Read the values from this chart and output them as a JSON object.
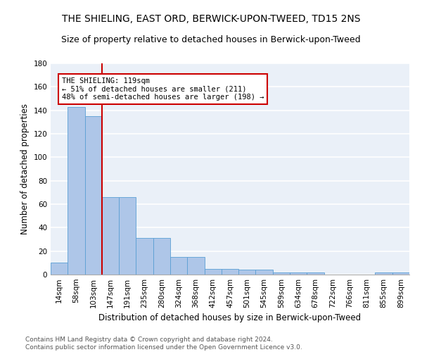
{
  "title": "THE SHIELING, EAST ORD, BERWICK-UPON-TWEED, TD15 2NS",
  "subtitle": "Size of property relative to detached houses in Berwick-upon-Tweed",
  "xlabel": "Distribution of detached houses by size in Berwick-upon-Tweed",
  "ylabel": "Number of detached properties",
  "categories": [
    "14sqm",
    "58sqm",
    "103sqm",
    "147sqm",
    "191sqm",
    "235sqm",
    "280sqm",
    "324sqm",
    "368sqm",
    "412sqm",
    "457sqm",
    "501sqm",
    "545sqm",
    "589sqm",
    "634sqm",
    "678sqm",
    "722sqm",
    "766sqm",
    "811sqm",
    "855sqm",
    "899sqm"
  ],
  "values": [
    10,
    143,
    135,
    66,
    66,
    31,
    31,
    15,
    15,
    5,
    5,
    4,
    4,
    2,
    2,
    2,
    0,
    0,
    0,
    2,
    2
  ],
  "bar_color": "#aec6e8",
  "bar_edge_color": "#5a9fd4",
  "red_line_x": 2.5,
  "annotation_text": "THE SHIELING: 119sqm\n← 51% of detached houses are smaller (211)\n48% of semi-detached houses are larger (198) →",
  "annotation_box_color": "#ffffff",
  "annotation_box_edge_color": "#cc0000",
  "red_line_color": "#cc0000",
  "ylim": [
    0,
    180
  ],
  "yticks": [
    0,
    20,
    40,
    60,
    80,
    100,
    120,
    140,
    160,
    180
  ],
  "background_color": "#eaf0f8",
  "grid_color": "#ffffff",
  "footer": "Contains HM Land Registry data © Crown copyright and database right 2024.\nContains public sector information licensed under the Open Government Licence v3.0.",
  "title_fontsize": 10,
  "subtitle_fontsize": 9,
  "xlabel_fontsize": 8.5,
  "ylabel_fontsize": 8.5,
  "tick_fontsize": 7.5,
  "footer_fontsize": 6.5,
  "annotation_fontsize": 7.5
}
